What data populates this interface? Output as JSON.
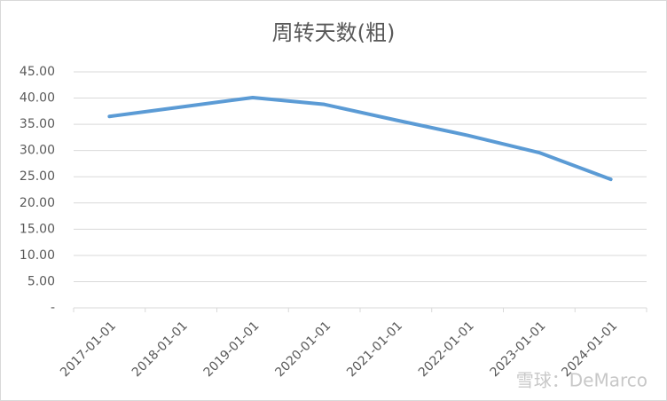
{
  "chart_data": {
    "type": "line",
    "title": "周转天数(粗)",
    "categories": [
      "2017-01-01",
      "2018-01-01",
      "2019-01-01",
      "2020-01-01",
      "2021-01-01",
      "2022-01-01",
      "2023-01-01",
      "2024-01-01"
    ],
    "series": [
      {
        "name": "周转天数(粗)",
        "color": "#5b9bd5",
        "values": [
          36.5,
          38.3,
          40.1,
          38.8,
          35.8,
          32.9,
          29.6,
          24.5
        ]
      }
    ],
    "ylim": [
      0,
      45
    ],
    "yticks": [
      {
        "value": 0,
        "label": "-"
      },
      {
        "value": 5,
        "label": "5.00"
      },
      {
        "value": 10,
        "label": "10.00"
      },
      {
        "value": 15,
        "label": "15.00"
      },
      {
        "value": 20,
        "label": "20.00"
      },
      {
        "value": 25,
        "label": "25.00"
      },
      {
        "value": 30,
        "label": "30.00"
      },
      {
        "value": 35,
        "label": "35.00"
      },
      {
        "value": 40,
        "label": "40.00"
      },
      {
        "value": 45,
        "label": "45.00"
      }
    ],
    "grid": true,
    "watermark": "雪球：DeMarco"
  }
}
